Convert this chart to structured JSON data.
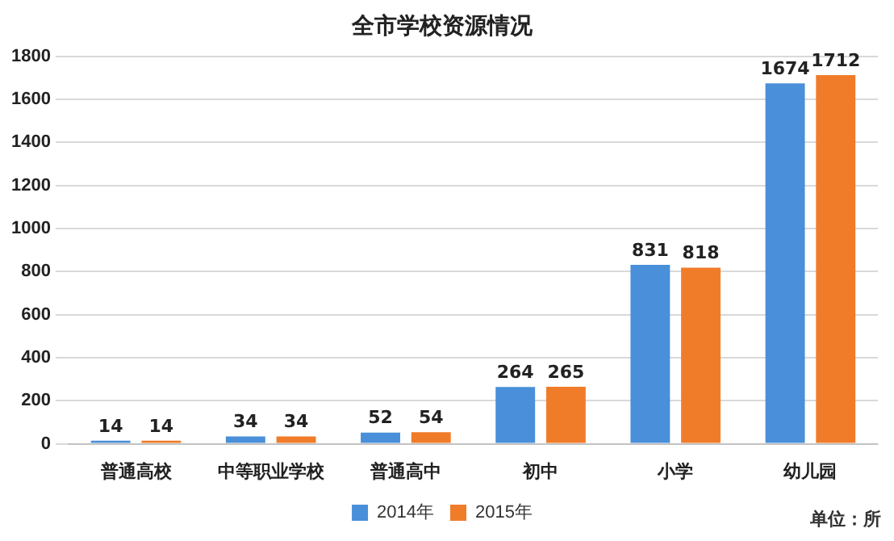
{
  "chart_data": {
    "type": "bar",
    "title": "全市学校资源情况",
    "categories": [
      "普通高校",
      "中等职业学校",
      "普通高中",
      "初中",
      "小学",
      "幼儿园"
    ],
    "series": [
      {
        "name": "2014年",
        "color": "#4a8fd9",
        "values": [
          14,
          34,
          52,
          264,
          831,
          1674
        ]
      },
      {
        "name": "2015年",
        "color": "#f07c2a",
        "values": [
          14,
          34,
          54,
          265,
          818,
          1712
        ]
      }
    ],
    "ylim": [
      0,
      1800
    ],
    "yticks": [
      0,
      200,
      400,
      600,
      800,
      1000,
      1200,
      1400,
      1600,
      1800
    ],
    "grid": "y",
    "legend": "bottom",
    "data_labels": true,
    "annotations": [
      "单位：所"
    ]
  }
}
